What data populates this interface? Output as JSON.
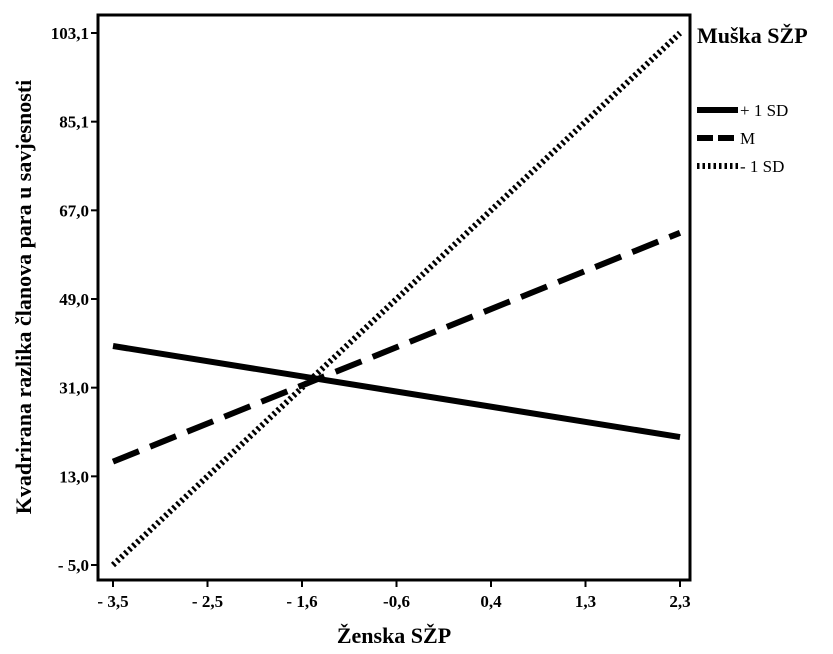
{
  "chart_data": {
    "type": "line",
    "xlabel": "Ženska SŽP",
    "ylabel": "Kvadrirana razlika članova para u savjesnosti",
    "x_ticks": [
      "- 3,5",
      "- 2,5",
      "- 1,6",
      "-0,6",
      "0,4",
      "1,3",
      "2,3"
    ],
    "y_ticks": [
      "- 5,0",
      "13,0",
      "31,0",
      "49,0",
      "67,0",
      "85,1",
      "103,1"
    ],
    "xlim": [
      -3.5,
      2.3
    ],
    "ylim": [
      -5.0,
      103.1
    ],
    "grid": false,
    "legend_title": "Muška SŽP",
    "legend_position": "right",
    "series": [
      {
        "name": "+ 1 SD",
        "style": "solid",
        "x": [
          -3.5,
          2.3
        ],
        "y": [
          39.5,
          21.0
        ]
      },
      {
        "name": "M",
        "style": "dashed",
        "x": [
          -3.5,
          2.3
        ],
        "y": [
          16.0,
          62.5
        ]
      },
      {
        "name": "- 1 SD",
        "style": "dotted",
        "x": [
          -3.5,
          2.3
        ],
        "y": [
          -5.0,
          103.1
        ]
      }
    ],
    "colors": {
      "line": "#000000",
      "background": "#ffffff"
    }
  }
}
